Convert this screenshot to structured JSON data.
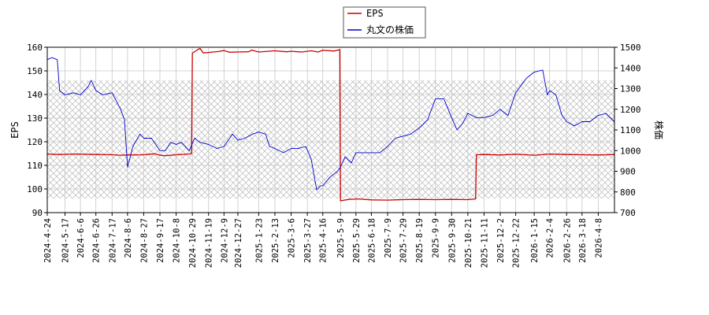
{
  "chart_data": {
    "type": "line",
    "legend": [
      {
        "name": "EPS",
        "color": "#cc0000"
      },
      {
        "name": "丸文の株価",
        "color": "#0000cc"
      }
    ],
    "legend_position": "top-center",
    "ylabel_left": "EPS",
    "ylabel_right": "株価",
    "ylim_left": [
      90,
      160
    ],
    "ylim_right": [
      700,
      1500
    ],
    "yticks_left": [
      90,
      100,
      110,
      120,
      130,
      140,
      150,
      160
    ],
    "yticks_right": [
      700,
      800,
      900,
      1000,
      1100,
      1200,
      1300,
      1400,
      1500
    ],
    "xlim": [
      "2024-04-24",
      "2026-04-29"
    ],
    "xticks": [
      "2024-4-24",
      "2024-5-17",
      "2024-6-6",
      "2024-6-26",
      "2024-7-17",
      "2024-8-6",
      "2024-8-27",
      "2024-9-17",
      "2024-10-8",
      "2024-10-29",
      "2024-11-19",
      "2024-12-9",
      "2024-12-27",
      "2025-1-23",
      "2025-2-13",
      "2025-3-6",
      "2025-3-27",
      "2025-4-16",
      "2025-5-9",
      "2025-5-29",
      "2025-6-18",
      "2025-7-9",
      "2025-7-29",
      "2025-8-19",
      "2025-9-9",
      "2025-9-30",
      "2025-10-21",
      "2025-11-11",
      "2025-12-2",
      "2025-12-22",
      "2026-1-15",
      "2026-2-4",
      "2026-2-26",
      "2026-3-18",
      "2026-4-8"
    ],
    "grid": true,
    "forecast_band": {
      "from": "2024-04-24",
      "to": "2026-04-29",
      "low": 96,
      "high": 146
    },
    "series": [
      {
        "name": "EPS",
        "axis": "left",
        "color": "#cc0000",
        "points": [
          [
            "2024-04-24",
            114.8
          ],
          [
            "2024-05-10",
            114.6
          ],
          [
            "2024-05-31",
            114.8
          ],
          [
            "2024-06-26",
            114.6
          ],
          [
            "2024-07-17",
            114.5
          ],
          [
            "2024-07-26",
            114.3
          ],
          [
            "2024-08-06",
            114.4
          ],
          [
            "2024-08-27",
            114.5
          ],
          [
            "2024-09-10",
            114.9
          ],
          [
            "2024-09-17",
            114.3
          ],
          [
            "2024-09-24",
            114.1
          ],
          [
            "2024-10-08",
            114.5
          ],
          [
            "2024-10-25",
            114.8
          ],
          [
            "2024-10-28",
            115.0
          ],
          [
            "2024-10-29",
            157.5
          ],
          [
            "2024-11-05",
            159.0
          ],
          [
            "2024-11-08",
            159.5
          ],
          [
            "2024-11-12",
            157.6
          ],
          [
            "2024-11-19",
            157.8
          ],
          [
            "2024-12-02",
            158.2
          ],
          [
            "2024-12-09",
            158.6
          ],
          [
            "2024-12-16",
            157.9
          ],
          [
            "2024-12-27",
            158.0
          ],
          [
            "2025-01-10",
            158.1
          ],
          [
            "2025-01-14",
            158.8
          ],
          [
            "2025-01-23",
            158.0
          ],
          [
            "2025-02-13",
            158.5
          ],
          [
            "2025-02-28",
            158.1
          ],
          [
            "2025-03-06",
            158.3
          ],
          [
            "2025-03-20",
            158.0
          ],
          [
            "2025-04-01",
            158.5
          ],
          [
            "2025-04-10",
            158.0
          ],
          [
            "2025-04-16",
            158.7
          ],
          [
            "2025-05-01",
            158.4
          ],
          [
            "2025-05-08",
            159.0
          ],
          [
            "2025-05-09",
            95.0
          ],
          [
            "2025-05-20",
            95.6
          ],
          [
            "2025-06-01",
            95.8
          ],
          [
            "2025-06-18",
            95.4
          ],
          [
            "2025-07-09",
            95.3
          ],
          [
            "2025-07-29",
            95.5
          ],
          [
            "2025-08-19",
            95.6
          ],
          [
            "2025-09-09",
            95.5
          ],
          [
            "2025-09-30",
            95.6
          ],
          [
            "2025-10-21",
            95.5
          ],
          [
            "2025-10-31",
            95.8
          ],
          [
            "2025-11-01",
            114.5
          ],
          [
            "2025-11-11",
            114.6
          ],
          [
            "2025-12-02",
            114.4
          ],
          [
            "2025-12-22",
            114.7
          ],
          [
            "2026-01-15",
            114.3
          ],
          [
            "2026-02-04",
            114.8
          ],
          [
            "2026-02-26",
            114.6
          ],
          [
            "2026-03-18",
            114.5
          ],
          [
            "2026-04-08",
            114.4
          ],
          [
            "2026-04-29",
            114.6
          ]
        ]
      },
      {
        "name": "丸文の株価",
        "axis": "right",
        "color": "#0000cc",
        "points": [
          [
            "2024-04-24",
            1440
          ],
          [
            "2024-04-30",
            1450
          ],
          [
            "2024-05-07",
            1440
          ],
          [
            "2024-05-10",
            1290
          ],
          [
            "2024-05-17",
            1270
          ],
          [
            "2024-05-28",
            1280
          ],
          [
            "2024-06-06",
            1270
          ],
          [
            "2024-06-16",
            1310
          ],
          [
            "2024-06-20",
            1340
          ],
          [
            "2024-06-26",
            1290
          ],
          [
            "2024-07-05",
            1270
          ],
          [
            "2024-07-17",
            1280
          ],
          [
            "2024-07-28",
            1200
          ],
          [
            "2024-08-02",
            1150
          ],
          [
            "2024-08-06",
            920
          ],
          [
            "2024-08-13",
            1020
          ],
          [
            "2024-08-22",
            1080
          ],
          [
            "2024-08-27",
            1060
          ],
          [
            "2024-09-06",
            1060
          ],
          [
            "2024-09-17",
            1000
          ],
          [
            "2024-09-24",
            1000
          ],
          [
            "2024-10-01",
            1040
          ],
          [
            "2024-10-08",
            1030
          ],
          [
            "2024-10-15",
            1040
          ],
          [
            "2024-10-25",
            1000
          ],
          [
            "2024-11-01",
            1060
          ],
          [
            "2024-11-08",
            1040
          ],
          [
            "2024-11-19",
            1030
          ],
          [
            "2024-11-30",
            1010
          ],
          [
            "2024-12-09",
            1020
          ],
          [
            "2024-12-20",
            1080
          ],
          [
            "2024-12-27",
            1050
          ],
          [
            "2025-01-05",
            1060
          ],
          [
            "2025-01-15",
            1080
          ],
          [
            "2025-01-23",
            1090
          ],
          [
            "2025-02-01",
            1080
          ],
          [
            "2025-02-06",
            1020
          ],
          [
            "2025-02-13",
            1010
          ],
          [
            "2025-02-24",
            990
          ],
          [
            "2025-03-06",
            1010
          ],
          [
            "2025-03-15",
            1010
          ],
          [
            "2025-03-25",
            1020
          ],
          [
            "2025-04-01",
            960
          ],
          [
            "2025-04-08",
            810
          ],
          [
            "2025-04-13",
            830
          ],
          [
            "2025-04-16",
            830
          ],
          [
            "2025-04-25",
            870
          ],
          [
            "2025-05-05",
            900
          ],
          [
            "2025-05-09",
            920
          ],
          [
            "2025-05-15",
            970
          ],
          [
            "2025-05-23",
            940
          ],
          [
            "2025-05-29",
            990
          ],
          [
            "2025-06-08",
            990
          ],
          [
            "2025-06-18",
            990
          ],
          [
            "2025-06-29",
            990
          ],
          [
            "2025-07-09",
            1020
          ],
          [
            "2025-07-19",
            1060
          ],
          [
            "2025-07-29",
            1070
          ],
          [
            "2025-08-08",
            1080
          ],
          [
            "2025-08-19",
            1110
          ],
          [
            "2025-08-30",
            1150
          ],
          [
            "2025-09-09",
            1250
          ],
          [
            "2025-09-20",
            1250
          ],
          [
            "2025-09-30",
            1160
          ],
          [
            "2025-10-07",
            1100
          ],
          [
            "2025-10-14",
            1130
          ],
          [
            "2025-10-21",
            1180
          ],
          [
            "2025-11-01",
            1160
          ],
          [
            "2025-11-11",
            1160
          ],
          [
            "2025-11-22",
            1170
          ],
          [
            "2025-12-02",
            1200
          ],
          [
            "2025-12-12",
            1170
          ],
          [
            "2025-12-22",
            1280
          ],
          [
            "2026-01-05",
            1350
          ],
          [
            "2026-01-15",
            1380
          ],
          [
            "2026-01-26",
            1390
          ],
          [
            "2026-02-01",
            1270
          ],
          [
            "2026-02-04",
            1290
          ],
          [
            "2026-02-12",
            1270
          ],
          [
            "2026-02-20",
            1170
          ],
          [
            "2026-02-26",
            1140
          ],
          [
            "2026-03-08",
            1120
          ],
          [
            "2026-03-18",
            1140
          ],
          [
            "2026-03-28",
            1140
          ],
          [
            "2026-04-08",
            1170
          ],
          [
            "2026-04-18",
            1180
          ],
          [
            "2026-04-29",
            1140
          ]
        ]
      }
    ]
  }
}
